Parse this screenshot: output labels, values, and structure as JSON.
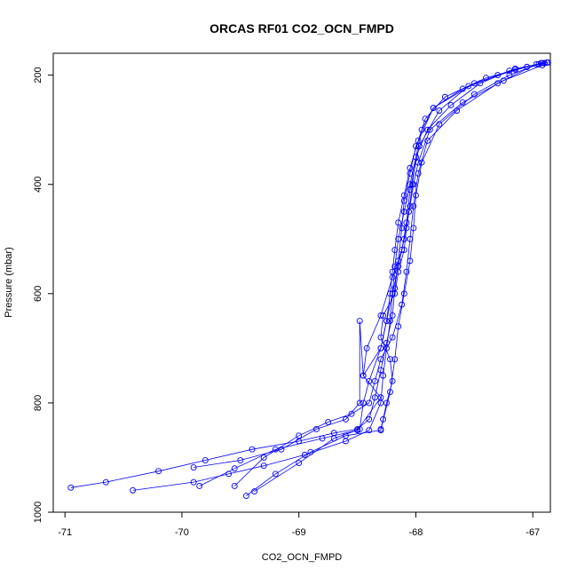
{
  "chart_data": {
    "type": "scatter",
    "title": "ORCAS RF01 CO2_OCN_FMPD",
    "xlabel": "CO2_OCN_FMPD",
    "ylabel": "Pressure (mbar)",
    "xlim": [
      -71.1,
      -66.85
    ],
    "ylim": [
      1000,
      160
    ],
    "y_reversed": true,
    "x_ticks": [
      -71,
      -70,
      -69,
      -68,
      -67
    ],
    "x_tick_labels": [
      "-71",
      "-70",
      "-69",
      "-68",
      "-67"
    ],
    "y_ticks": [
      200,
      400,
      600,
      800,
      1000
    ],
    "y_tick_labels": [
      "200",
      "400",
      "600",
      "800",
      "1000"
    ],
    "grid": false,
    "series_color": "#0000ff",
    "marker": "open-circle",
    "connected": true,
    "series": [
      {
        "x": [
          -66.87,
          -66.92,
          -66.95,
          -67.15,
          -67.5,
          -67.85,
          -68.0,
          -68.05,
          -68.1,
          -68.12,
          -68.15,
          -68.18,
          -68.2,
          -68.25,
          -68.3,
          -68.35,
          -68.4,
          -68.5,
          -68.7,
          -69.0,
          -69.4,
          -69.8,
          -70.2,
          -70.65,
          -70.95
        ],
        "y": [
          177,
          178,
          180,
          190,
          215,
          260,
          330,
          380,
          430,
          480,
          540,
          590,
          640,
          690,
          740,
          790,
          830,
          848,
          855,
          870,
          885,
          905,
          925,
          945,
          955
        ]
      },
      {
        "x": [
          -70.42,
          -69.9,
          -69.6,
          -69.3,
          -68.95,
          -68.6,
          -68.4,
          -68.3,
          -68.28,
          -68.25,
          -68.22,
          -68.2,
          -68.18,
          -68.15,
          -68.1,
          -68.05,
          -68.0,
          -67.95,
          -67.85,
          -67.6,
          -67.3,
          -67.05,
          -66.93
        ],
        "y": [
          960,
          945,
          930,
          915,
          895,
          870,
          850,
          800,
          750,
          700,
          650,
          600,
          550,
          500,
          450,
          400,
          350,
          300,
          260,
          225,
          200,
          185,
          178
        ]
      },
      {
        "x": [
          -66.9,
          -67.2,
          -67.55,
          -67.8,
          -67.97,
          -68.05,
          -68.08,
          -68.12,
          -68.2,
          -68.3,
          -68.42,
          -68.45,
          -68.3,
          -68.5,
          -68.8,
          -69.2,
          -69.55,
          -69.85
        ],
        "y": [
          178,
          192,
          220,
          265,
          330,
          410,
          470,
          520,
          570,
          640,
          700,
          750,
          790,
          850,
          865,
          885,
          920,
          952
        ]
      },
      {
        "x": [
          -69.45,
          -69.2,
          -68.9,
          -68.6,
          -68.3,
          -68.22,
          -68.18,
          -68.15,
          -68.1,
          -68.05,
          -68.02,
          -68.0,
          -67.95,
          -67.8,
          -67.5,
          -67.2,
          -66.95
        ],
        "y": [
          970,
          930,
          890,
          860,
          850,
          780,
          720,
          660,
          600,
          540,
          480,
          420,
          360,
          290,
          235,
          200,
          180
        ]
      },
      {
        "x": [
          -69.38,
          -69.0,
          -68.7,
          -68.48,
          -68.45,
          -68.4,
          -68.3,
          -68.25,
          -68.2,
          -68.15,
          -68.1,
          -68.06,
          -68.03,
          -68.0,
          -67.9,
          -67.7,
          -67.45,
          -67.15,
          -66.9
        ],
        "y": [
          962,
          910,
          865,
          848,
          800,
          760,
          700,
          650,
          600,
          550,
          500,
          450,
          400,
          350,
          300,
          255,
          215,
          188,
          178
        ]
      },
      {
        "x": [
          -69.9,
          -69.5,
          -69.15,
          -68.85,
          -68.6,
          -68.48,
          -68.48,
          -68.45,
          -68.3,
          -68.25,
          -68.22,
          -68.2,
          -68.18,
          -68.15,
          -68.1,
          -68.05,
          -67.98,
          -67.92,
          -67.75,
          -67.4,
          -67.05,
          -66.88
        ],
        "y": [
          918,
          905,
          885,
          848,
          830,
          800,
          650,
          750,
          700,
          650,
          600,
          560,
          520,
          470,
          420,
          370,
          320,
          280,
          240,
          205,
          185,
          177
        ]
      },
      {
        "x": [
          -69.55,
          -69.3,
          -69.0,
          -68.75,
          -68.55,
          -68.4,
          -68.35,
          -68.3,
          -68.2,
          -68.12,
          -68.08,
          -68.05,
          -68.02,
          -67.98,
          -67.9,
          -67.65,
          -67.3,
          -66.97
        ],
        "y": [
          952,
          900,
          860,
          835,
          820,
          800,
          760,
          720,
          680,
          620,
          560,
          500,
          440,
          380,
          320,
          265,
          215,
          180
        ]
      },
      {
        "x": [
          -68.3,
          -68.28,
          -68.25,
          -68.2,
          -68.22,
          -68.3,
          -68.28,
          -68.18,
          -68.15,
          -68.1,
          -68.08,
          -68.05,
          -68.02,
          -67.98,
          -67.88,
          -67.6,
          -67.25,
          -66.92
        ],
        "y": [
          848,
          830,
          800,
          760,
          720,
          680,
          640,
          600,
          560,
          520,
          480,
          440,
          400,
          360,
          300,
          250,
          210,
          182
        ]
      }
    ]
  }
}
